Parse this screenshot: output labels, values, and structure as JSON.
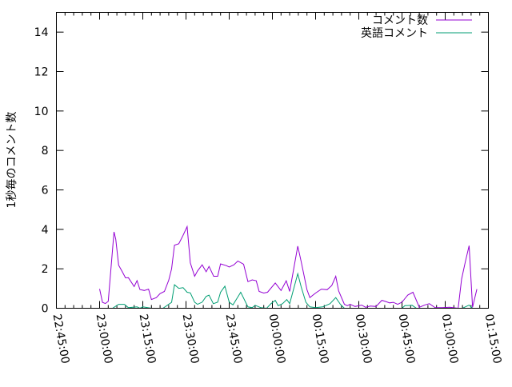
{
  "chart_data": {
    "type": "line",
    "title": "",
    "xlabel": "",
    "ylabel": "1秒毎のコメント数",
    "xlim": [
      "22:45:00",
      "01:15:00"
    ],
    "ylim": [
      0,
      15
    ],
    "x_ticks": [
      "22:45:00",
      "23:00:00",
      "23:15:00",
      "23:30:00",
      "23:45:00",
      "00:00:00",
      "00:15:00",
      "00:30:00",
      "00:45:00",
      "01:00:00",
      "01:15:00"
    ],
    "y_ticks": [
      "0",
      "2",
      "4",
      "6",
      "8",
      "10",
      "12",
      "14"
    ],
    "grid": false,
    "legend_placement": "top-right",
    "series": [
      {
        "name": "コメント数",
        "color": "#9400d3",
        "points": [
          [
            "23:00:00",
            0.98
          ],
          [
            "23:01:00",
            0.3
          ],
          [
            "23:02:00",
            0.24
          ],
          [
            "23:03:00",
            0.35
          ],
          [
            "23:05:00",
            3.87
          ],
          [
            "23:05:36",
            3.5
          ],
          [
            "23:06:36",
            2.18
          ],
          [
            "23:07:42",
            1.9
          ],
          [
            "23:09:00",
            1.54
          ],
          [
            "23:10:00",
            1.55
          ],
          [
            "23:12:00",
            1.1
          ],
          [
            "23:13:00",
            1.4
          ],
          [
            "23:14:00",
            0.95
          ],
          [
            "23:15:30",
            0.9
          ],
          [
            "23:17:00",
            0.97
          ],
          [
            "23:18:00",
            0.44
          ],
          [
            "23:19:42",
            0.54
          ],
          [
            "23:21:00",
            0.74
          ],
          [
            "23:22:30",
            0.85
          ],
          [
            "23:24:00",
            1.42
          ],
          [
            "23:25:00",
            2.0
          ],
          [
            "23:26:00",
            3.2
          ],
          [
            "23:27:30",
            3.27
          ],
          [
            "23:29:00",
            3.7
          ],
          [
            "23:30:24",
            4.14
          ],
          [
            "23:31:30",
            2.3
          ],
          [
            "23:33:00",
            1.62
          ],
          [
            "23:34:00",
            1.89
          ],
          [
            "23:35:36",
            2.2
          ],
          [
            "23:37:00",
            1.85
          ],
          [
            "23:38:00",
            2.12
          ],
          [
            "23:39:36",
            1.62
          ],
          [
            "23:41:00",
            1.62
          ],
          [
            "23:42:00",
            2.25
          ],
          [
            "23:44:00",
            2.16
          ],
          [
            "23:45:00",
            2.09
          ],
          [
            "23:46:36",
            2.2
          ],
          [
            "23:48:00",
            2.39
          ],
          [
            "23:50:00",
            2.23
          ],
          [
            "23:51:30",
            1.35
          ],
          [
            "23:53:00",
            1.44
          ],
          [
            "23:54:24",
            1.39
          ],
          [
            "23:55:24",
            0.85
          ],
          [
            "23:57:00",
            0.77
          ],
          [
            "23:58:18",
            0.81
          ],
          [
            "00:01:00",
            1.28
          ],
          [
            "00:03:00",
            0.9
          ],
          [
            "00:04:48",
            1.39
          ],
          [
            "00:06:00",
            0.85
          ],
          [
            "00:08:48",
            3.15
          ],
          [
            "00:10:00",
            2.36
          ],
          [
            "00:12:00",
            0.94
          ],
          [
            "00:13:00",
            0.54
          ],
          [
            "00:15:00",
            0.77
          ],
          [
            "00:17:00",
            0.97
          ],
          [
            "00:19:00",
            0.94
          ],
          [
            "00:20:36",
            1.15
          ],
          [
            "00:22:00",
            1.62
          ],
          [
            "00:23:00",
            0.88
          ],
          [
            "00:25:00",
            0.2
          ],
          [
            "00:26:00",
            0.13
          ],
          [
            "00:27:00",
            0.2
          ],
          [
            "00:28:42",
            0.09
          ],
          [
            "00:31:00",
            0.16
          ],
          [
            "00:32:24",
            0.05
          ],
          [
            "00:34:00",
            0.11
          ],
          [
            "00:36:00",
            0.09
          ],
          [
            "00:38:00",
            0.4
          ],
          [
            "00:39:24",
            0.34
          ],
          [
            "00:40:42",
            0.27
          ],
          [
            "00:42:00",
            0.3
          ],
          [
            "00:43:30",
            0.2
          ],
          [
            "00:45:00",
            0.31
          ],
          [
            "00:47:00",
            0.67
          ],
          [
            "00:48:48",
            0.81
          ],
          [
            "00:51:00",
            0.05
          ],
          [
            "00:53:00",
            0.17
          ],
          [
            "00:54:30",
            0.23
          ],
          [
            "00:56:30",
            0.03
          ],
          [
            "00:59:00",
            0.03
          ],
          [
            "01:01:30",
            0.05
          ],
          [
            "01:04:30",
            0.0
          ],
          [
            "01:05:42",
            1.48
          ],
          [
            "01:07:00",
            2.36
          ],
          [
            "01:08:18",
            3.17
          ],
          [
            "01:09:30",
            0.05
          ],
          [
            "01:11:00",
            0.97
          ]
        ]
      },
      {
        "name": "英語コメント",
        "color": "#009e73",
        "points": [
          [
            "23:00:00",
            0
          ],
          [
            "23:04:30",
            0
          ],
          [
            "23:06:36",
            0.2
          ],
          [
            "23:08:36",
            0.2
          ],
          [
            "23:10:00",
            0.03
          ],
          [
            "23:13:00",
            0.07
          ],
          [
            "23:14:00",
            0
          ],
          [
            "23:15:00",
            0.07
          ],
          [
            "23:18:00",
            0
          ],
          [
            "23:22:00",
            0
          ],
          [
            "23:24:00",
            0.2
          ],
          [
            "23:25:00",
            0.3
          ],
          [
            "23:26:00",
            1.19
          ],
          [
            "23:27:30",
            1.01
          ],
          [
            "23:29:00",
            1.04
          ],
          [
            "23:30:24",
            0.81
          ],
          [
            "23:31:30",
            0.78
          ],
          [
            "23:33:00",
            0.31
          ],
          [
            "23:34:00",
            0.2
          ],
          [
            "23:35:36",
            0.31
          ],
          [
            "23:37:00",
            0.6
          ],
          [
            "23:38:00",
            0.66
          ],
          [
            "23:39:30",
            0.23
          ],
          [
            "23:41:00",
            0.31
          ],
          [
            "23:42:00",
            0.81
          ],
          [
            "23:43:30",
            1.12
          ],
          [
            "23:45:00",
            0.31
          ],
          [
            "23:46:18",
            0.17
          ],
          [
            "23:48:00",
            0.57
          ],
          [
            "23:49:00",
            0.81
          ],
          [
            "23:51:30",
            0.07
          ],
          [
            "23:53:00",
            0.03
          ],
          [
            "23:54:00",
            0.15
          ],
          [
            "23:56:00",
            0.03
          ],
          [
            "23:58:00",
            0
          ],
          [
            "23:59:30",
            0.23
          ],
          [
            "00:01:00",
            0.4
          ],
          [
            "00:02:00",
            0.13
          ],
          [
            "00:03:30",
            0.23
          ],
          [
            "00:05:00",
            0.44
          ],
          [
            "00:06:00",
            0.23
          ],
          [
            "00:08:48",
            1.75
          ],
          [
            "00:10:00",
            1.08
          ],
          [
            "00:11:36",
            0.31
          ],
          [
            "00:13:00",
            0.07
          ],
          [
            "00:15:00",
            0.03
          ],
          [
            "00:17:30",
            0.07
          ],
          [
            "00:20:00",
            0.23
          ],
          [
            "00:22:00",
            0.54
          ],
          [
            "00:23:36",
            0.2
          ],
          [
            "00:25:00",
            0
          ],
          [
            "00:45:00",
            0
          ],
          [
            "00:46:00",
            0.13
          ],
          [
            "00:48:30",
            0.15
          ],
          [
            "00:50:00",
            0
          ],
          [
            "01:06:00",
            0
          ],
          [
            "01:08:18",
            0.16
          ],
          [
            "01:09:30",
            0
          ],
          [
            "01:11:00",
            0
          ]
        ]
      }
    ]
  }
}
